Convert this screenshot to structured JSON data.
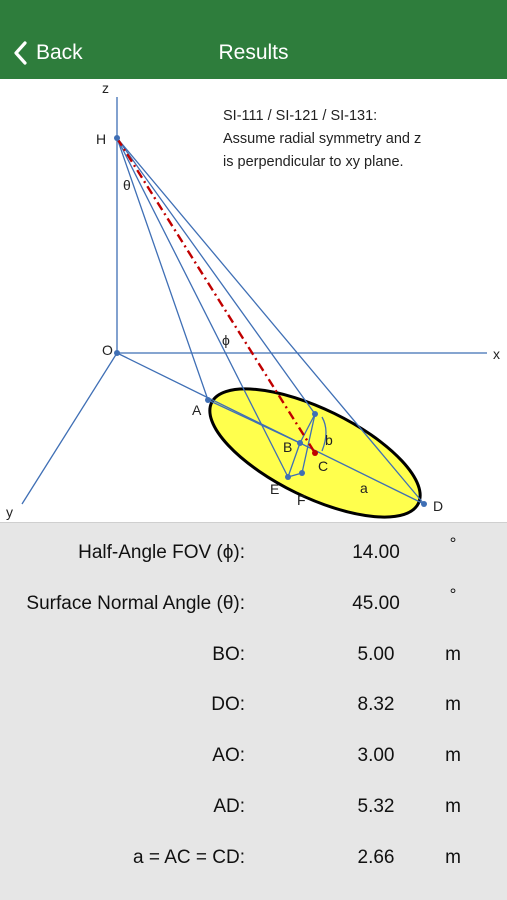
{
  "nav": {
    "back_label": "Back",
    "title": "Results"
  },
  "diagram": {
    "note_lines": [
      "SI-111 / SI-121 / SI-131:",
      "Assume radial symmetry and z",
      "is perpendicular to xy plane."
    ],
    "labels": {
      "z": "z",
      "x": "x",
      "y": "y",
      "H": "H",
      "O": "O",
      "theta": "θ",
      "phi": "ϕ",
      "A": "A",
      "B": "B",
      "C": "C",
      "D": "D",
      "E": "E",
      "F": "F",
      "a": "a",
      "b": "b"
    },
    "colors": {
      "ellipse_fill": "#ffff4d",
      "lines": "#3f6fb5",
      "dash": "#c00000",
      "navbar": "#2e7d3c"
    }
  },
  "results": [
    {
      "label": "Half-Angle FOV (ϕ):",
      "value": "14.00",
      "unit": "°"
    },
    {
      "label": "Surface Normal Angle (θ):",
      "value": "45.00",
      "unit": "°"
    },
    {
      "label": "BO:",
      "value": "5.00",
      "unit": "m"
    },
    {
      "label": "DO:",
      "value": "8.32",
      "unit": "m"
    },
    {
      "label": "AO:",
      "value": "3.00",
      "unit": "m"
    },
    {
      "label": "AD:",
      "value": "5.32",
      "unit": "m"
    },
    {
      "label": "a = AC = CD:",
      "value": "2.66",
      "unit": "m"
    }
  ]
}
